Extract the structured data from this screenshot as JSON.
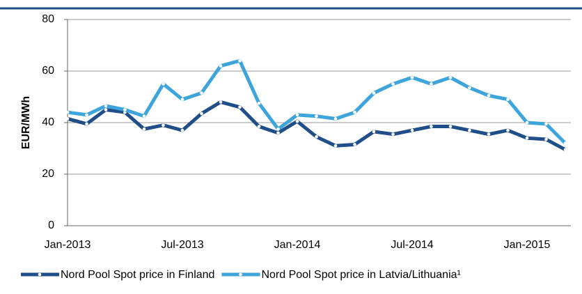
{
  "chart_data": {
    "type": "line",
    "y_label": "EUR/MWh",
    "categories": [
      "Jan-2013",
      null,
      null,
      null,
      null,
      null,
      "Jul-2013",
      null,
      null,
      null,
      null,
      null,
      "Jan-2014",
      null,
      null,
      null,
      null,
      null,
      "Jul-2014",
      null,
      null,
      null,
      null,
      null,
      "Jan-2015",
      null,
      null
    ],
    "series": [
      {
        "name": "Nord Pool Spot price in Finland",
        "color": "#1f4e89",
        "values": [
          41.5,
          39.5,
          45,
          44,
          37.5,
          39,
          37,
          43.5,
          48,
          46,
          38.5,
          36,
          40.5,
          34.5,
          31,
          31.5,
          36.5,
          35.5,
          37,
          38.5,
          38.5,
          37,
          35.5,
          37,
          34,
          33.5,
          29.5
        ]
      },
      {
        "name": "Nord Pool Spot price in Latvia/Lithuania¹",
        "color": "#3da5dc",
        "values": [
          44,
          43,
          46.5,
          45,
          42.5,
          55,
          49,
          51.5,
          62,
          64,
          47.5,
          37.5,
          43,
          42.5,
          41.5,
          44,
          51.5,
          55,
          57.5,
          55,
          57.5,
          53.5,
          50.5,
          49,
          40,
          39.5,
          32
        ]
      }
    ],
    "ylim": [
      0,
      80
    ],
    "yticks": [
      0,
      20,
      40,
      60,
      80
    ],
    "grid": true,
    "legend": "bottom"
  }
}
